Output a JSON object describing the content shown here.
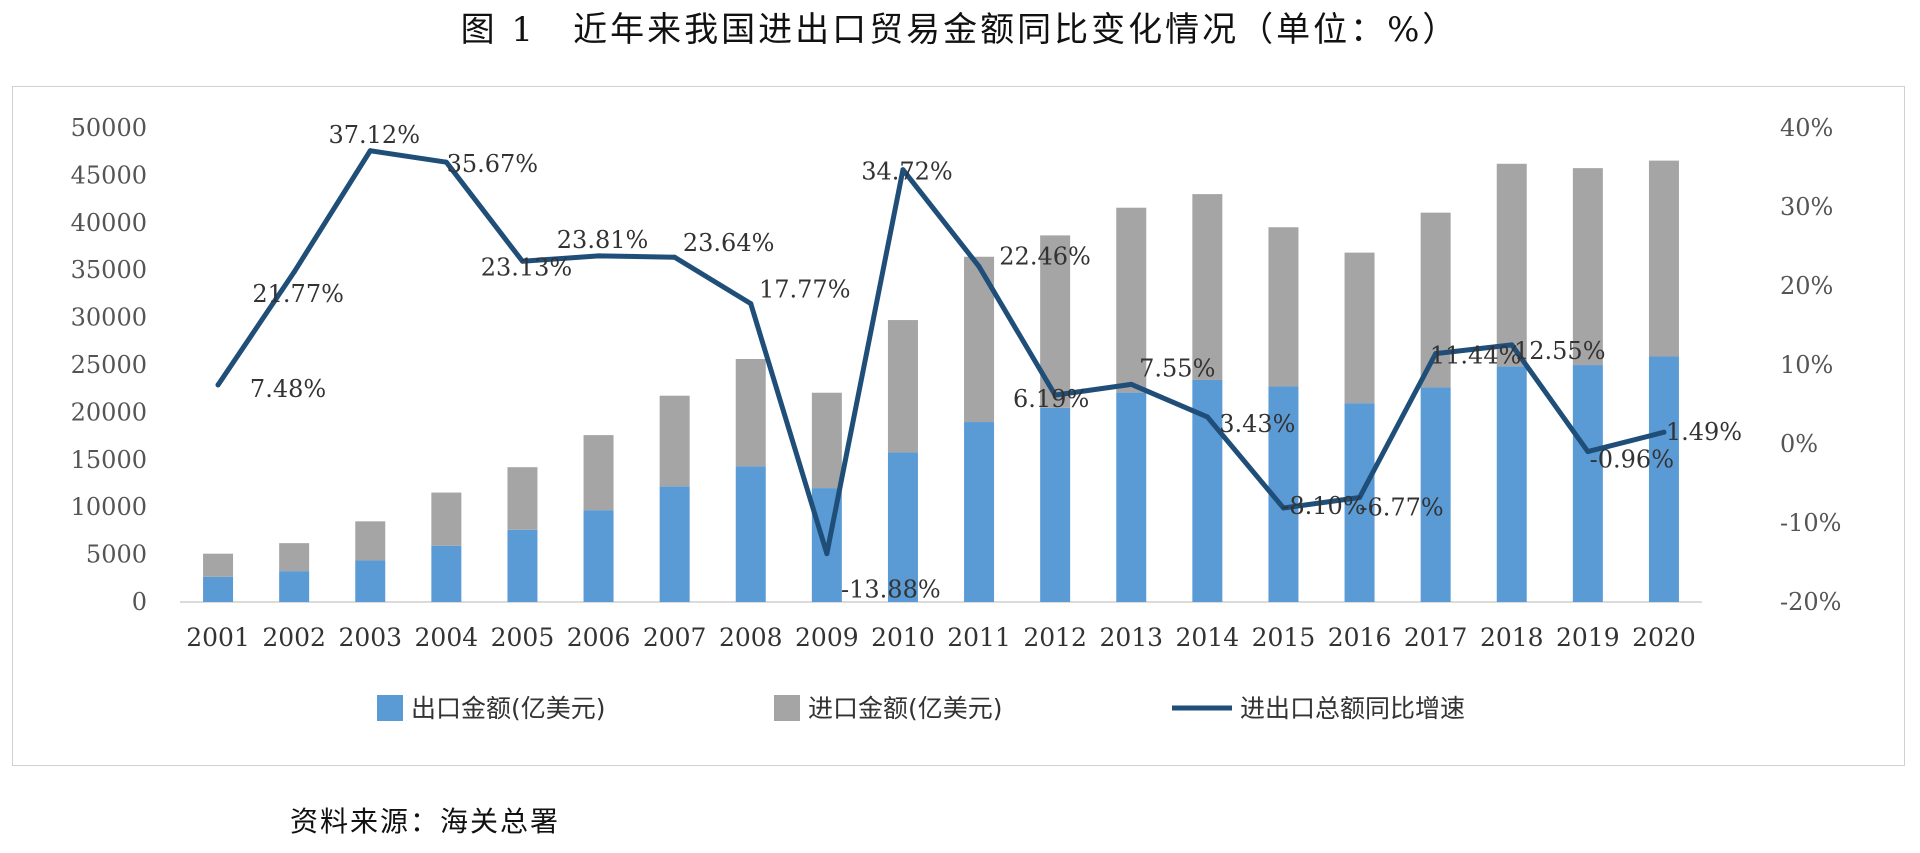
{
  "figure_title": "图 1　近年来我国进出口贸易金额同比变化情况（单位：%）",
  "source_note": "资料来源：海关总署",
  "chart_data": {
    "type": "bar",
    "stacked": true,
    "title": "图 1　近年来我国进出口贸易金额同比变化情况（单位：%）",
    "categories": [
      "2001",
      "2002",
      "2003",
      "2004",
      "2005",
      "2006",
      "2007",
      "2008",
      "2009",
      "2010",
      "2011",
      "2012",
      "2013",
      "2014",
      "2015",
      "2016",
      "2017",
      "2018",
      "2019",
      "2020"
    ],
    "series": [
      {
        "name": "出口金额(亿美元)",
        "type": "bar",
        "axis": "left",
        "color": "#5b9bd5",
        "values": [
          2661,
          3256,
          4382,
          5933,
          7620,
          9689,
          12200,
          14307,
          12016,
          15778,
          18984,
          20487,
          22090,
          23423,
          22735,
          20976,
          22633,
          24867,
          24995,
          25900
        ]
      },
      {
        "name": "进口金额(亿美元)",
        "type": "bar",
        "axis": "left",
        "color": "#a5a5a5",
        "values": [
          2436,
          2952,
          4128,
          5612,
          6600,
          7915,
          9561,
          11326,
          10059,
          13962,
          17435,
          18184,
          19500,
          19603,
          16796,
          15879,
          18438,
          21357,
          20771,
          20660
        ]
      },
      {
        "name": "进出口总额同比增速",
        "type": "line",
        "axis": "right",
        "color": "#1f4e79",
        "values": [
          7.48,
          21.77,
          37.12,
          35.67,
          23.13,
          23.81,
          23.64,
          17.77,
          -13.88,
          34.72,
          22.46,
          6.19,
          7.55,
          3.43,
          -8.1,
          -6.77,
          11.44,
          12.55,
          -0.96,
          1.49
        ],
        "labels": [
          "7.48%",
          "21.77%",
          "37.12%",
          "35.67%",
          "23.13%",
          "23.81%",
          "23.64%",
          "17.77%",
          "-13.88%",
          "34.72%",
          "22.46%",
          "6.19%",
          "7.55%",
          "3.43%",
          "-8.10%",
          "-6.77%",
          "11.44%",
          "12.55%",
          "-0.96%",
          "1.49%"
        ]
      }
    ],
    "left_axis": {
      "ylim": [
        0,
        50000
      ],
      "ticks": [
        "0",
        "5000",
        "10000",
        "15000",
        "20000",
        "25000",
        "30000",
        "35000",
        "40000",
        "45000",
        "50000"
      ]
    },
    "right_axis": {
      "ylim": [
        -20,
        40
      ],
      "ticks": [
        "-20%",
        "-10%",
        "0%",
        "10%",
        "20%",
        "30%",
        "40%"
      ]
    },
    "grid": false,
    "legend_position": "bottom"
  }
}
